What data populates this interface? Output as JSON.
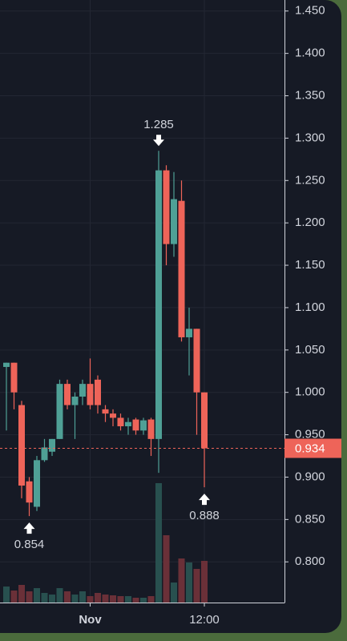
{
  "chart_data": {
    "type": "candlestick",
    "categories": [
      null,
      null,
      null,
      null,
      null,
      null,
      null,
      null,
      null,
      null,
      null,
      "Nov",
      null,
      null,
      null,
      null,
      null,
      null,
      null,
      null,
      null,
      null,
      null,
      null,
      null,
      null,
      "12:00"
    ],
    "open": [
      1.03,
      1.035,
      0.985,
      0.895,
      0.865,
      0.92,
      0.93,
      0.945,
      1.01,
      0.985,
      0.995,
      1.01,
      1.015,
      0.98,
      0.975,
      0.97,
      0.96,
      0.968,
      0.955,
      0.968,
      0.945,
      1.262,
      1.175,
      1.226,
      1.065,
      1.075,
      1.0
    ],
    "high": [
      1.035,
      1.035,
      0.99,
      0.9,
      0.925,
      0.945,
      0.945,
      1.015,
      1.015,
      1.0,
      1.015,
      1.04,
      1.02,
      0.985,
      0.98,
      0.975,
      0.97,
      0.97,
      0.97,
      0.97,
      1.285,
      1.268,
      1.26,
      1.25,
      1.1,
      1.075,
      1.0
    ],
    "low": [
      0.955,
      0.98,
      0.875,
      0.854,
      0.86,
      0.918,
      0.925,
      0.945,
      0.98,
      0.945,
      0.985,
      0.98,
      0.975,
      0.965,
      0.96,
      0.955,
      0.95,
      0.95,
      0.95,
      0.925,
      0.905,
      1.15,
      1.16,
      1.06,
      1.02,
      0.95,
      0.888
    ],
    "close": [
      1.035,
      1.0,
      0.89,
      0.87,
      0.92,
      0.935,
      0.945,
      1.01,
      0.985,
      0.995,
      1.01,
      0.985,
      0.985,
      0.975,
      0.97,
      0.96,
      0.965,
      0.955,
      0.967,
      0.945,
      1.262,
      1.175,
      1.228,
      1.065,
      1.075,
      1.0,
      0.934
    ],
    "volume": [
      20,
      15,
      22,
      14,
      18,
      12,
      10,
      18,
      14,
      10,
      14,
      8,
      12,
      10,
      9,
      8,
      8,
      6,
      6,
      8,
      149,
      84,
      25,
      55,
      50,
      42,
      52
    ],
    "up_color": "#4fa096",
    "down_color": "#ee6459",
    "volume_up_color": "#28504f",
    "volume_down_color": "#6a3038",
    "annotations": [
      1.285,
      0.854,
      0.888
    ],
    "ylim": [
      0.752,
      1.463
    ],
    "yticks": [
      {
        "value": 0.8,
        "label": "0.800"
      },
      {
        "value": 0.85,
        "label": "0.850"
      },
      {
        "value": 0.9,
        "label": "0.900"
      },
      {
        "value": 0.95,
        "label": "0.950"
      },
      {
        "value": 1.0,
        "label": "1.000"
      },
      {
        "value": 1.05,
        "label": "1.050"
      },
      {
        "value": 1.1,
        "label": "1.100"
      },
      {
        "value": 1.15,
        "label": "1.150"
      },
      {
        "value": 1.2,
        "label": "1.200"
      },
      {
        "value": 1.25,
        "label": "1.250"
      },
      {
        "value": 1.3,
        "label": "1.300"
      },
      {
        "value": 1.35,
        "label": "1.350"
      },
      {
        "value": 1.4,
        "label": "1.400"
      },
      {
        "value": 1.45,
        "label": "1.450"
      }
    ],
    "grid": true
  }
}
